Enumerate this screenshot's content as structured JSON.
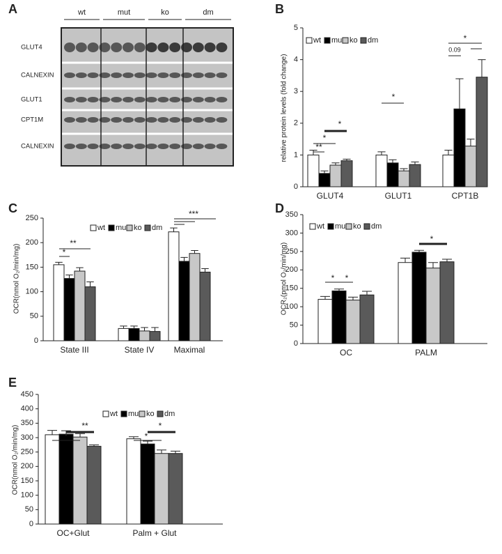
{
  "panel_a": {
    "label": "A",
    "lanes": [
      "wt",
      "mut",
      "ko",
      "dm"
    ],
    "rows": [
      "GLUT4",
      "CALNEXIN",
      "GLUT1",
      "CPT1M",
      "CALNEXIN"
    ]
  },
  "chart_data": [
    {
      "type": "bar",
      "label": "B",
      "ylabel": "relative protein levels (fold change)",
      "categories": [
        "GLUT4",
        "GLUT1",
        "CPT1B"
      ],
      "series": [
        {
          "name": "wt",
          "color": "#ffffff",
          "values": [
            1.0,
            1.0,
            1.0
          ],
          "errors": [
            0.15,
            0.1,
            0.15
          ]
        },
        {
          "name": "mut",
          "color": "#000000",
          "values": [
            0.42,
            0.75,
            2.45
          ],
          "errors": [
            0.08,
            0.1,
            0.95
          ]
        },
        {
          "name": "ko",
          "color": "#c8c8c8",
          "values": [
            0.68,
            0.5,
            1.28
          ],
          "errors": [
            0.07,
            0.07,
            0.22
          ]
        },
        {
          "name": "dm",
          "color": "#5a5a5a",
          "values": [
            0.82,
            0.7,
            3.45
          ],
          "errors": [
            0.05,
            0.08,
            0.55
          ]
        }
      ],
      "ylim": [
        0,
        5
      ],
      "yticks": [
        0,
        1,
        2,
        3,
        4,
        5
      ],
      "annotations": [
        "**",
        "*",
        "*",
        "*",
        "0.09",
        "*"
      ]
    },
    {
      "type": "bar",
      "label": "C",
      "ylabel": "OCR(nmol O₂/min/mg)",
      "categories": [
        "State III",
        "State IV",
        "Maximal"
      ],
      "series": [
        {
          "name": "wt",
          "color": "#ffffff",
          "values": [
            155,
            25,
            222
          ],
          "errors": [
            5,
            5,
            8
          ]
        },
        {
          "name": "mut",
          "color": "#000000",
          "values": [
            127,
            25,
            162
          ],
          "errors": [
            7,
            5,
            8
          ]
        },
        {
          "name": "ko",
          "color": "#c8c8c8",
          "values": [
            142,
            20,
            178
          ],
          "errors": [
            7,
            7,
            6
          ]
        },
        {
          "name": "dm",
          "color": "#5a5a5a",
          "values": [
            110,
            19,
            140
          ],
          "errors": [
            10,
            8,
            7
          ]
        }
      ],
      "ylim": [
        0,
        250
      ],
      "yticks": [
        0,
        50,
        100,
        150,
        200,
        250
      ],
      "annotations": [
        "*",
        "**",
        "***"
      ]
    },
    {
      "type": "bar",
      "label": "D",
      "ylabel": "OCR₂(pmol O₂/min/mg)",
      "categories": [
        "OC",
        "PALM"
      ],
      "series": [
        {
          "name": "wt",
          "color": "#ffffff",
          "values": [
            120,
            220
          ],
          "errors": [
            8,
            12
          ]
        },
        {
          "name": "mut",
          "color": "#000000",
          "values": [
            143,
            248
          ],
          "errors": [
            5,
            5
          ]
        },
        {
          "name": "ko",
          "color": "#c8c8c8",
          "values": [
            118,
            205
          ],
          "errors": [
            8,
            15
          ]
        },
        {
          "name": "dm",
          "color": "#5a5a5a",
          "values": [
            132,
            222
          ],
          "errors": [
            10,
            7
          ]
        }
      ],
      "ylim": [
        0,
        350
      ],
      "yticks": [
        0,
        50,
        100,
        150,
        200,
        250,
        300,
        350
      ],
      "annotations": [
        "*",
        "*",
        "*"
      ]
    },
    {
      "type": "bar",
      "label": "E",
      "ylabel": "OCR(nmol O₂/min/mg)",
      "categories": [
        "OC+Glut",
        "Palm + Glut"
      ],
      "series": [
        {
          "name": "wt",
          "color": "#ffffff",
          "values": [
            310,
            296
          ],
          "errors": [
            15,
            7
          ]
        },
        {
          "name": "mut",
          "color": "#000000",
          "values": [
            312,
            278
          ],
          "errors": [
            12,
            10
          ]
        },
        {
          "name": "ko",
          "color": "#c8c8c8",
          "values": [
            302,
            245
          ],
          "errors": [
            12,
            12
          ]
        },
        {
          "name": "dm",
          "color": "#5a5a5a",
          "values": [
            270,
            245
          ],
          "errors": [
            5,
            8
          ]
        }
      ],
      "ylim": [
        0,
        450
      ],
      "yticks": [
        0,
        50,
        100,
        150,
        200,
        250,
        300,
        350,
        400,
        450
      ],
      "annotations": [
        "*",
        "**",
        "*",
        "*"
      ]
    }
  ]
}
